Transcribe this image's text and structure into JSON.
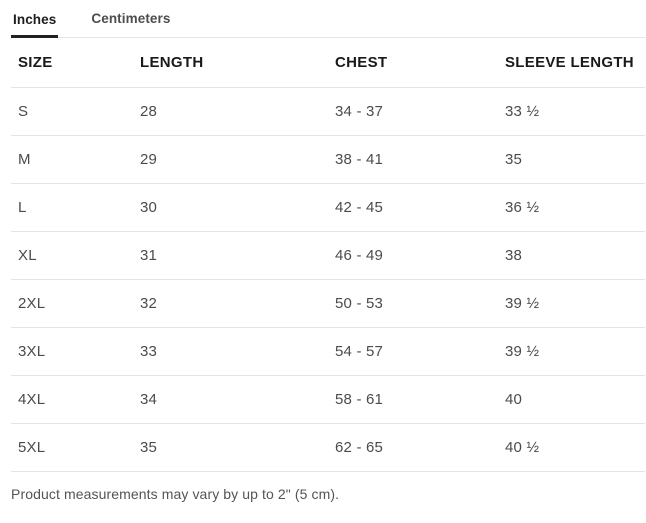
{
  "tabs": [
    {
      "label": "Inches",
      "active": true
    },
    {
      "label": "Centimeters",
      "active": false
    }
  ],
  "table": {
    "headers": [
      "SIZE",
      "LENGTH",
      "CHEST",
      "SLEEVE LENGTH"
    ],
    "rows": [
      [
        "S",
        "28",
        "34 - 37",
        "33 ½"
      ],
      [
        "M",
        "29",
        "38 - 41",
        "35"
      ],
      [
        "L",
        "30",
        "42 - 45",
        "36 ½"
      ],
      [
        "XL",
        "31",
        "46 - 49",
        "38"
      ],
      [
        "2XL",
        "32",
        "50 - 53",
        "39 ½"
      ],
      [
        "3XL",
        "33",
        "54 - 57",
        "39 ½"
      ],
      [
        "4XL",
        "34",
        "58 - 61",
        "40"
      ],
      [
        "5XL",
        "35",
        "62 - 65",
        "40 ½"
      ]
    ]
  },
  "footer": {
    "note": "Product measurements may vary by up to 2\" (5 cm)."
  },
  "colors": {
    "active_tab_text": "#1d1d1d",
    "active_tab_underline": "#222222",
    "inactive_tab_text": "#4d4d4d",
    "header_text": "#1a1a1a",
    "cell_text": "#4b4b4b",
    "divider": "#e4e4e4",
    "background": "#ffffff"
  }
}
